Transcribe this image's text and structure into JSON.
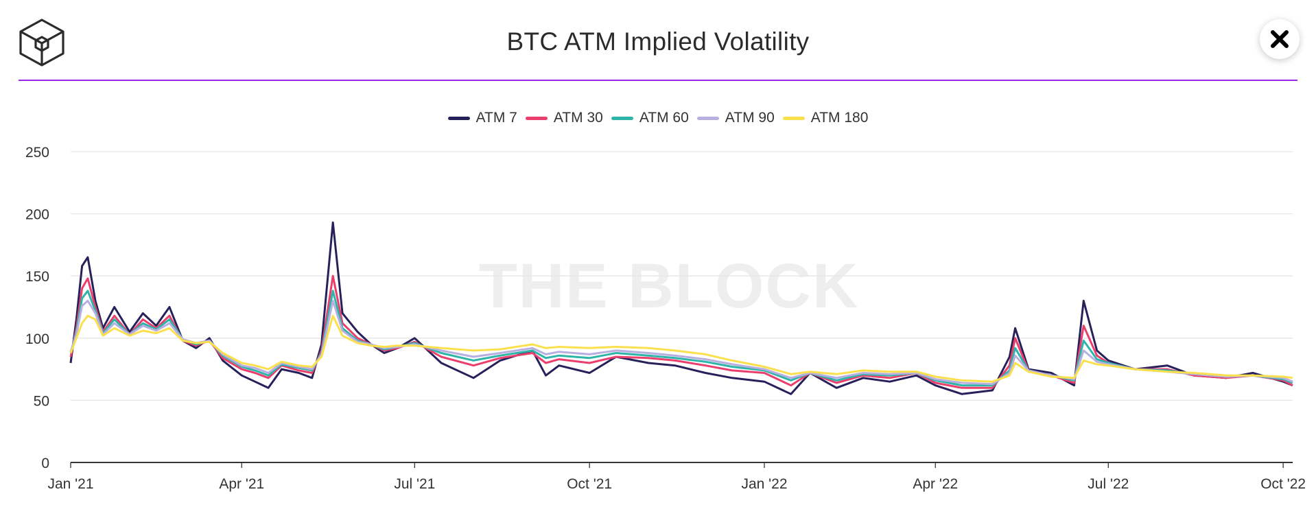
{
  "header": {
    "title": "BTC ATM Implied Volatility",
    "close_icon": "close-icon",
    "logo_icon": "cube-logo-icon",
    "accent": "#9b27e6"
  },
  "watermark": "THE BLOCK",
  "chart_data": {
    "type": "line",
    "title": "BTC ATM Implied Volatility",
    "xlabel": "",
    "ylabel": "",
    "legend_position": "top-center",
    "grid": true,
    "x_range": [
      "2021-01-01",
      "2022-10-06"
    ],
    "ylim": [
      0,
      250
    ],
    "y_ticks": [
      0,
      50,
      100,
      150,
      200,
      250
    ],
    "x_ticks": [
      {
        "date": "2021-01-01",
        "label": "Jan '21"
      },
      {
        "date": "2021-04-01",
        "label": "Apr '21"
      },
      {
        "date": "2021-07-01",
        "label": "Jul '21"
      },
      {
        "date": "2021-10-01",
        "label": "Oct '21"
      },
      {
        "date": "2022-01-01",
        "label": "Jan '22"
      },
      {
        "date": "2022-04-01",
        "label": "Apr '22"
      },
      {
        "date": "2022-07-01",
        "label": "Jul '22"
      },
      {
        "date": "2022-10-01",
        "label": "Oct '22"
      }
    ],
    "x": [
      "2021-01-01",
      "2021-01-04",
      "2021-01-07",
      "2021-01-10",
      "2021-01-14",
      "2021-01-18",
      "2021-01-24",
      "2021-02-01",
      "2021-02-08",
      "2021-02-15",
      "2021-02-22",
      "2021-03-01",
      "2021-03-08",
      "2021-03-15",
      "2021-03-22",
      "2021-04-01",
      "2021-04-08",
      "2021-04-15",
      "2021-04-22",
      "2021-05-01",
      "2021-05-08",
      "2021-05-13",
      "2021-05-19",
      "2021-05-24",
      "2021-06-01",
      "2021-06-08",
      "2021-06-15",
      "2021-06-22",
      "2021-07-01",
      "2021-07-15",
      "2021-08-01",
      "2021-08-15",
      "2021-09-01",
      "2021-09-08",
      "2021-09-15",
      "2021-10-01",
      "2021-10-15",
      "2021-11-01",
      "2021-11-15",
      "2021-12-01",
      "2021-12-15",
      "2022-01-01",
      "2022-01-15",
      "2022-01-25",
      "2022-02-08",
      "2022-02-22",
      "2022-03-08",
      "2022-03-22",
      "2022-04-01",
      "2022-04-15",
      "2022-05-01",
      "2022-05-10",
      "2022-05-13",
      "2022-05-20",
      "2022-06-01",
      "2022-06-13",
      "2022-06-18",
      "2022-06-25",
      "2022-07-01",
      "2022-07-15",
      "2022-08-01",
      "2022-08-15",
      "2022-09-01",
      "2022-09-15",
      "2022-10-01",
      "2022-10-06"
    ],
    "series": [
      {
        "name": "ATM 7",
        "color": "#26215a",
        "values": [
          80,
          115,
          158,
          165,
          130,
          108,
          125,
          105,
          120,
          110,
          125,
          98,
          92,
          100,
          82,
          70,
          65,
          60,
          75,
          72,
          68,
          95,
          193,
          120,
          105,
          95,
          88,
          92,
          100,
          80,
          68,
          82,
          90,
          70,
          78,
          72,
          85,
          80,
          78,
          72,
          68,
          65,
          55,
          72,
          60,
          68,
          65,
          70,
          62,
          55,
          58,
          85,
          108,
          75,
          72,
          62,
          130,
          90,
          82,
          75,
          78,
          70,
          68,
          72,
          65,
          62
        ]
      },
      {
        "name": "ATM 30",
        "color": "#ea3f6c",
        "values": [
          85,
          108,
          140,
          148,
          125,
          105,
          118,
          103,
          115,
          108,
          118,
          98,
          94,
          98,
          84,
          75,
          72,
          68,
          78,
          74,
          72,
          90,
          150,
          112,
          100,
          95,
          90,
          92,
          97,
          85,
          78,
          84,
          88,
          80,
          83,
          80,
          85,
          84,
          82,
          78,
          74,
          72,
          62,
          72,
          64,
          70,
          68,
          72,
          64,
          60,
          60,
          78,
          100,
          74,
          70,
          64,
          110,
          86,
          80,
          75,
          75,
          70,
          68,
          70,
          66,
          62
        ]
      },
      {
        "name": "ATM 60",
        "color": "#2fb4aa",
        "values": [
          88,
          105,
          132,
          138,
          122,
          104,
          115,
          103,
          112,
          107,
          115,
          99,
          95,
          98,
          86,
          77,
          74,
          70,
          79,
          76,
          74,
          88,
          138,
          108,
          98,
          95,
          91,
          93,
          96,
          88,
          82,
          86,
          90,
          84,
          86,
          84,
          88,
          86,
          84,
          81,
          77,
          74,
          66,
          72,
          66,
          71,
          70,
          72,
          66,
          62,
          62,
          74,
          92,
          74,
          70,
          66,
          98,
          83,
          80,
          75,
          74,
          71,
          69,
          70,
          67,
          64
        ]
      },
      {
        "name": "ATM 90",
        "color": "#b7afe0",
        "values": [
          89,
          103,
          126,
          130,
          120,
          103,
          112,
          103,
          110,
          106,
          112,
          99,
          96,
          98,
          87,
          78,
          76,
          72,
          80,
          77,
          75,
          87,
          130,
          106,
          97,
          95,
          92,
          93,
          95,
          90,
          85,
          88,
          92,
          87,
          89,
          87,
          90,
          88,
          86,
          83,
          79,
          75,
          68,
          72,
          68,
          72,
          71,
          72,
          67,
          64,
          63,
          72,
          86,
          74,
          70,
          67,
          90,
          81,
          79,
          75,
          73,
          71,
          69,
          70,
          68,
          65
        ]
      },
      {
        "name": "ATM 180",
        "color": "#fbe04d",
        "values": [
          88,
          100,
          112,
          118,
          115,
          102,
          108,
          102,
          106,
          104,
          108,
          98,
          96,
          97,
          88,
          80,
          78,
          75,
          81,
          78,
          77,
          85,
          118,
          102,
          96,
          94,
          93,
          94,
          94,
          92,
          90,
          91,
          95,
          92,
          93,
          92,
          93,
          92,
          90,
          87,
          82,
          77,
          71,
          73,
          71,
          74,
          73,
          73,
          69,
          66,
          65,
          70,
          80,
          73,
          69,
          68,
          82,
          79,
          78,
          75,
          73,
          72,
          70,
          70,
          69,
          68
        ]
      }
    ]
  }
}
